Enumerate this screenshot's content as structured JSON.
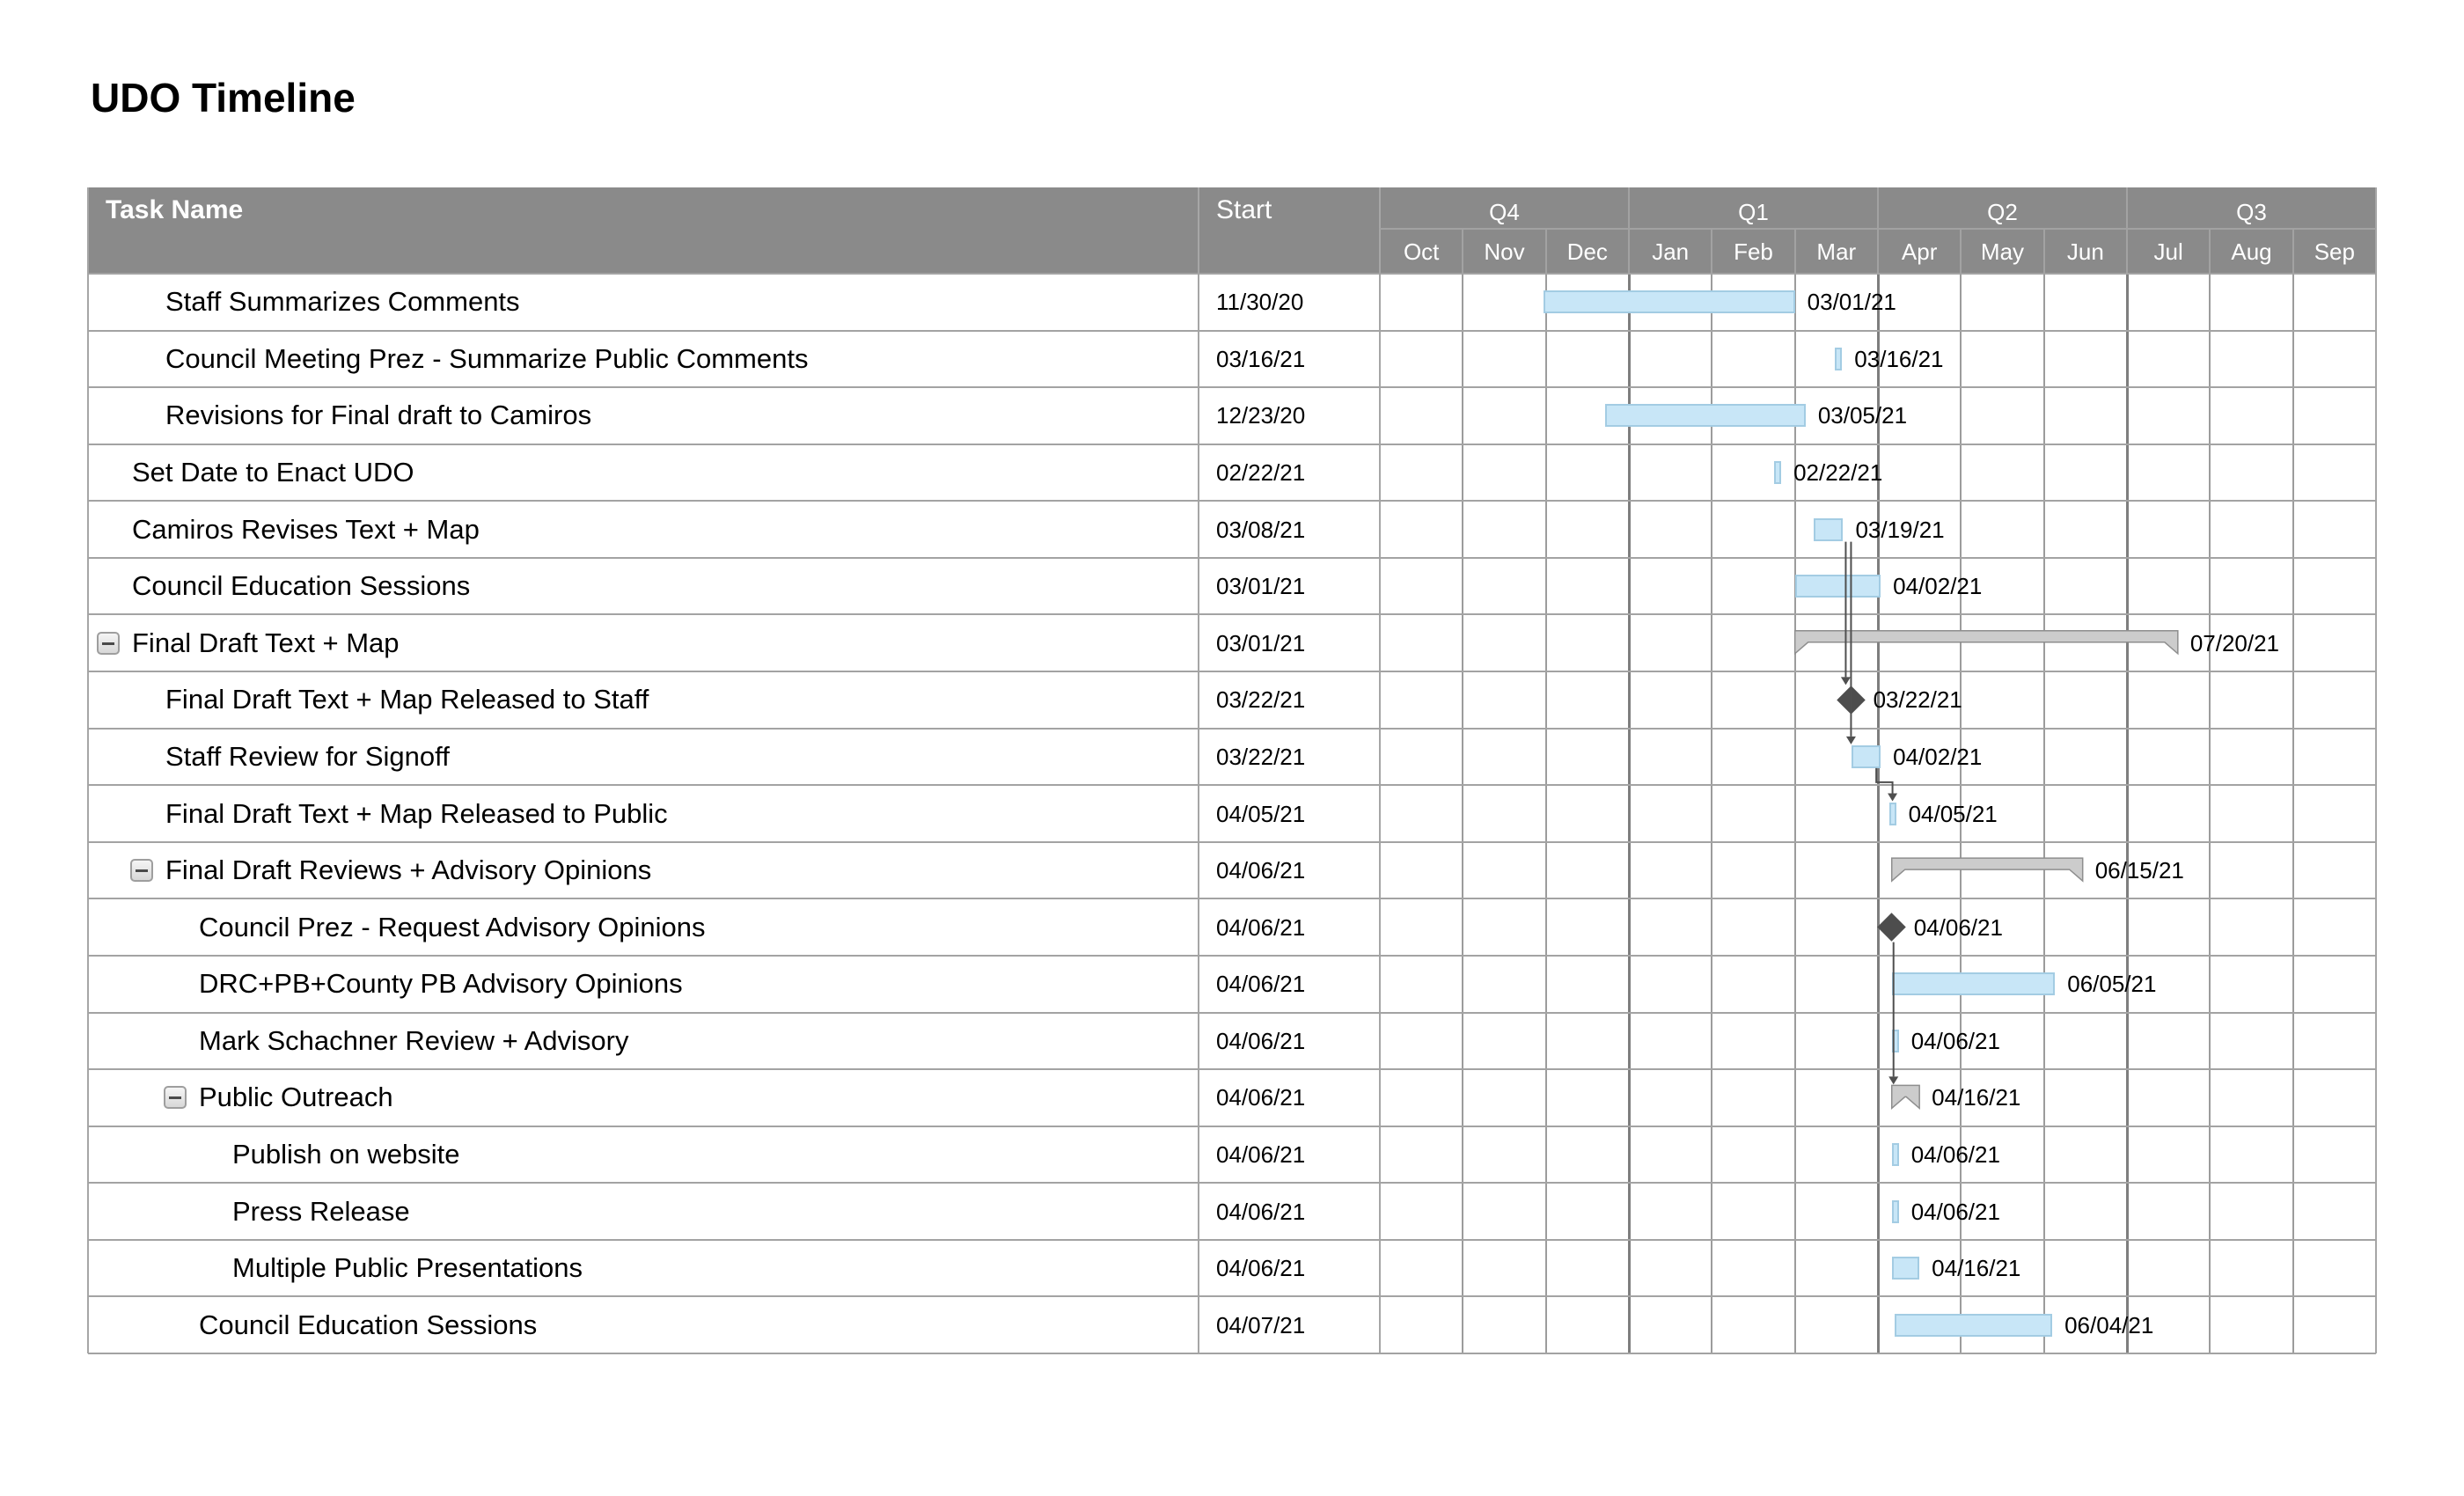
{
  "title": "UDO Timeline",
  "header": {
    "task_name": "Task Name",
    "start": "Start"
  },
  "icons": {
    "collapse": "minus"
  },
  "colors": {
    "header_bg": "#8A8A8A",
    "header_text": "#FFFFFF",
    "row_line": "#A3A3A3",
    "grid_month": "#9C9C9C",
    "grid_quarter": "#7E7E7E",
    "column_line": "#A6A6A6",
    "header_divider": "#A2A2A2",
    "bar_fill": "#C8E6F7",
    "bar_border": "#A3CCE3",
    "summary_fill": "#CCCCCC",
    "summary_border": "#8E8E8E",
    "milestone": "#4D4D4D",
    "connector": "#4F4F4F",
    "text": "#000000"
  },
  "chart_data": {
    "type": "gantt",
    "title": "UDO Timeline",
    "x_axis": {
      "quarters": [
        "Q4",
        "Q1",
        "Q2",
        "Q3"
      ],
      "months": [
        "Oct",
        "Nov",
        "Dec",
        "Jan",
        "Feb",
        "Mar",
        "Apr",
        "May",
        "Jun",
        "Jul",
        "Aug",
        "Sep"
      ],
      "range_start": "2020-10-01",
      "range_end": "2021-09-30"
    },
    "columns": [
      "Task Name",
      "Start"
    ],
    "tasks": [
      {
        "name": "Staff Summarizes Comments",
        "start": "11/30/20",
        "indent": 1,
        "collapse_button": false,
        "bar": {
          "type": "bar",
          "from": "2020-11-30",
          "to": "2021-03-01",
          "label": "03/01/21"
        }
      },
      {
        "name": "Council Meeting Prez - Summarize Public Comments",
        "start": "03/16/21",
        "indent": 1,
        "collapse_button": false,
        "bar": {
          "type": "bar",
          "from": "2021-03-16",
          "to": "2021-03-16",
          "label": "03/16/21"
        }
      },
      {
        "name": "Revisions for Final draft to Camiros",
        "start": "12/23/20",
        "indent": 1,
        "collapse_button": false,
        "bar": {
          "type": "bar",
          "from": "2020-12-23",
          "to": "2021-03-05",
          "label": "03/05/21"
        }
      },
      {
        "name": "Set Date to Enact UDO",
        "start": "02/22/21",
        "indent": 0,
        "collapse_button": false,
        "bar": {
          "type": "bar",
          "from": "2021-02-22",
          "to": "2021-02-22",
          "label": "02/22/21"
        }
      },
      {
        "name": "Camiros Revises Text + Map",
        "start": "03/08/21",
        "indent": 0,
        "collapse_button": false,
        "bar": {
          "type": "bar",
          "from": "2021-03-08",
          "to": "2021-03-19",
          "label": "03/19/21"
        }
      },
      {
        "name": "Council Education Sessions",
        "start": "03/01/21",
        "indent": 0,
        "collapse_button": false,
        "bar": {
          "type": "bar",
          "from": "2021-03-01",
          "to": "2021-04-02",
          "label": "04/02/21"
        }
      },
      {
        "name": "Final Draft Text + Map",
        "start": "03/01/21",
        "indent": 0,
        "collapse_button": true,
        "bar": {
          "type": "summary",
          "from": "2021-03-01",
          "to": "2021-07-20",
          "label": "07/20/21"
        }
      },
      {
        "name": "Final Draft Text + Map Released to Staff",
        "start": "03/22/21",
        "indent": 1,
        "collapse_button": false,
        "bar": {
          "type": "milestone",
          "from": "2021-03-22",
          "to": "2021-03-22",
          "label": "03/22/21"
        }
      },
      {
        "name": "Staff Review for Signoff",
        "start": "03/22/21",
        "indent": 1,
        "collapse_button": false,
        "bar": {
          "type": "bar",
          "from": "2021-03-22",
          "to": "2021-04-02",
          "label": "04/02/21"
        }
      },
      {
        "name": "Final Draft Text + Map Released to Public",
        "start": "04/05/21",
        "indent": 1,
        "collapse_button": false,
        "bar": {
          "type": "bar",
          "from": "2021-04-05",
          "to": "2021-04-05",
          "label": "04/05/21"
        }
      },
      {
        "name": "Final Draft Reviews + Advisory Opinions",
        "start": "04/06/21",
        "indent": 1,
        "collapse_button": true,
        "bar": {
          "type": "summary",
          "from": "2021-04-06",
          "to": "2021-06-15",
          "label": "06/15/21"
        }
      },
      {
        "name": "Council Prez - Request Advisory Opinions",
        "start": "04/06/21",
        "indent": 2,
        "collapse_button": false,
        "bar": {
          "type": "milestone",
          "from": "2021-04-06",
          "to": "2021-04-06",
          "label": "04/06/21"
        }
      },
      {
        "name": "DRC+PB+County PB Advisory Opinions",
        "start": "04/06/21",
        "indent": 2,
        "collapse_button": false,
        "bar": {
          "type": "bar",
          "from": "2021-04-06",
          "to": "2021-06-05",
          "label": "06/05/21"
        }
      },
      {
        "name": "Mark Schachner Review + Advisory",
        "start": "04/06/21",
        "indent": 2,
        "collapse_button": false,
        "bar": {
          "type": "bar",
          "from": "2021-04-06",
          "to": "2021-04-06",
          "label": "04/06/21"
        }
      },
      {
        "name": "Public Outreach",
        "start": "04/06/21",
        "indent": 2,
        "collapse_button": true,
        "bar": {
          "type": "summary",
          "from": "2021-04-06",
          "to": "2021-04-16",
          "label": "04/16/21"
        }
      },
      {
        "name": "Publish on website",
        "start": "04/06/21",
        "indent": 3,
        "collapse_button": false,
        "bar": {
          "type": "bar",
          "from": "2021-04-06",
          "to": "2021-04-06",
          "label": "04/06/21"
        }
      },
      {
        "name": "Press Release",
        "start": "04/06/21",
        "indent": 3,
        "collapse_button": false,
        "bar": {
          "type": "bar",
          "from": "2021-04-06",
          "to": "2021-04-06",
          "label": "04/06/21"
        }
      },
      {
        "name": "Multiple Public Presentations",
        "start": "04/06/21",
        "indent": 3,
        "collapse_button": false,
        "bar": {
          "type": "bar",
          "from": "2021-04-06",
          "to": "2021-04-16",
          "label": "04/16/21"
        }
      },
      {
        "name": "Council Education Sessions",
        "start": "04/07/21",
        "indent": 2,
        "collapse_button": false,
        "bar": {
          "type": "bar",
          "from": "2021-04-07",
          "to": "2021-06-04",
          "label": "06/04/21"
        }
      }
    ],
    "dependencies": [
      {
        "from": 5,
        "to": 8,
        "style": "straight",
        "lane": 0
      },
      {
        "from": 5,
        "to": 9,
        "style": "straight",
        "lane": 1
      },
      {
        "from": 9,
        "to": 10,
        "style": "elbow"
      },
      {
        "from": 12,
        "to": 15,
        "style": "straight",
        "lane": 0
      }
    ]
  }
}
